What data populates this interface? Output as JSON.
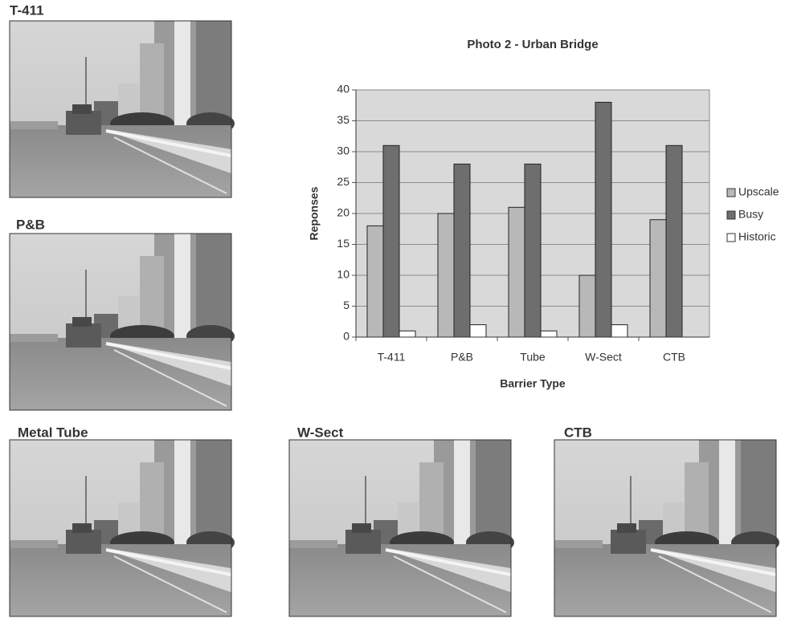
{
  "photos": [
    "T-411",
    "P&B",
    "Metal Tube",
    "W-Sect",
    "CTB"
  ],
  "chart_data": {
    "type": "bar",
    "title": "Photo 2 - Urban Bridge",
    "x_label": "Barrier Type",
    "y_label": "Reponses",
    "categories": [
      "T-411",
      "P&B",
      "Tube",
      "W-Sect",
      "CTB"
    ],
    "series": [
      {
        "name": "Upscale",
        "color": "#b8b8b8",
        "values": [
          18,
          20,
          21,
          10,
          19
        ]
      },
      {
        "name": "Busy",
        "color": "#6e6e6e",
        "values": [
          31,
          28,
          28,
          38,
          31
        ]
      },
      {
        "name": "Historic",
        "color": "#ffffff",
        "values": [
          1,
          2,
          1,
          2,
          0
        ]
      }
    ],
    "ylim": [
      0,
      40
    ],
    "yticks": [
      0,
      5,
      10,
      15,
      20,
      25,
      30,
      35,
      40
    ],
    "grid": true,
    "legend": "right"
  }
}
